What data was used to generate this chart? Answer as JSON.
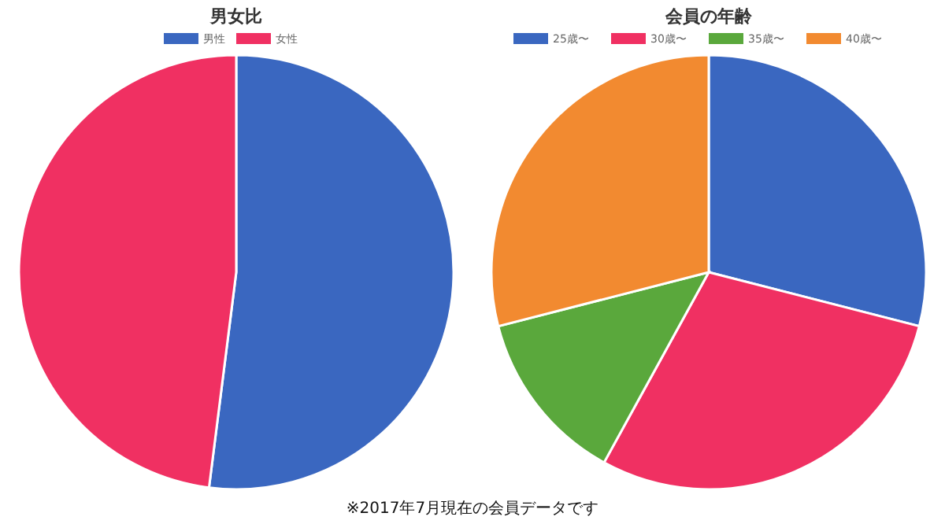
{
  "chart_data": [
    {
      "type": "pie",
      "title": "男女比",
      "legend": "top",
      "categories": [
        "男性",
        "女性"
      ],
      "values": [
        52,
        48
      ],
      "colors": [
        "#3a67c0",
        "#f03062"
      ],
      "annotations": [
        "※2017年7月現在の会員データです"
      ]
    },
    {
      "type": "pie",
      "title": "会員の年齢",
      "legend": "top",
      "categories": [
        "25歳〜",
        "30歳〜",
        "35歳〜",
        "40歳〜"
      ],
      "values": [
        29,
        29,
        13,
        29
      ],
      "colors": [
        "#3a67c0",
        "#f03062",
        "#5aa83c",
        "#f28a30"
      ]
    }
  ]
}
